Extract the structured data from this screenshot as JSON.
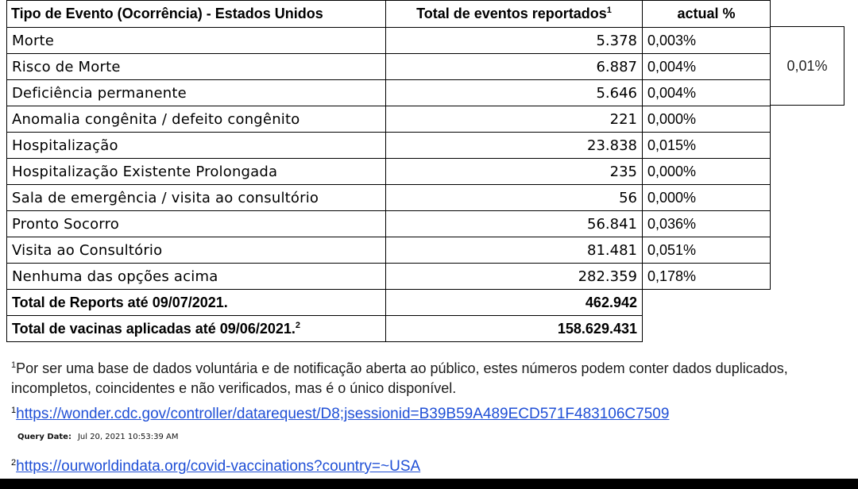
{
  "table": {
    "headers": {
      "event_type": "Tipo de Evento (Ocorrência) - Estados Unidos",
      "total_reported": "Total de eventos reportados",
      "total_reported_sup": "1",
      "actual_pct": "actual %"
    },
    "rows": [
      {
        "label": "Morte",
        "total": "5.378",
        "pct": "0,003%"
      },
      {
        "label": "Risco de Morte",
        "total": "6.887",
        "pct": "0,004%"
      },
      {
        "label": "Deficiência permanente",
        "total": "5.646",
        "pct": "0,004%"
      },
      {
        "label": "Anomalia congênita / defeito congênito",
        "total": "221",
        "pct": "0,000%"
      },
      {
        "label": "Hospitalização",
        "total": "23.838",
        "pct": "0,015%"
      },
      {
        "label": "Hospitalização Existente Prolongada",
        "total": "235",
        "pct": "0,000%"
      },
      {
        "label": "Sala de emergência / visita ao consultório",
        "total": "56",
        "pct": "0,000%"
      },
      {
        "label": "Pronto Socorro",
        "total": "56.841",
        "pct": "0,036%"
      },
      {
        "label": "Visita ao Consultório",
        "total": "81.481",
        "pct": "0,051%"
      },
      {
        "label": "Nenhuma das opções acima",
        "total": "282.359",
        "pct": "0,178%"
      }
    ],
    "totals": [
      {
        "label": "Total de Reports até 09/07/2021.",
        "sup": "",
        "value": "462.942"
      },
      {
        "label": "Total de vacinas aplicadas até 09/06/2021.",
        "sup": "2",
        "value": "158.629.431"
      }
    ],
    "combined_pct": "0,01%"
  },
  "footnotes": {
    "note_sup": "1",
    "note_text": "Por ser uma base de dados voluntária e de notificação aberta ao público, estes números podem conter dados duplicados, incompletos, coincidentes e não verificados, mas é o único disponível.",
    "link1_sup": "1",
    "link1": "https://wonder.cdc.gov/controller/datarequest/D8;jsessionid=B39B59A489ECD571F483106C7509",
    "query_label": "Query Date:",
    "query_value": "Jul 20, 2021 10:53:39 AM",
    "link2_sup": "2",
    "link2": "https://ourworldindata.org/covid-vaccinations?country=~USA"
  }
}
